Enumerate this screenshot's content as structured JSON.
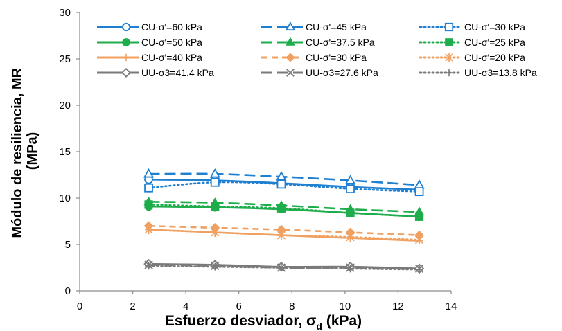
{
  "chart_data": {
    "type": "line",
    "title": "",
    "xlabel": "Esfuerzo desviador, σ",
    "xlabel_sub": "d",
    "xlabel_suffix": " (kPa)",
    "ylabel_line1": "Módulo de resiliencia, MR",
    "ylabel_line2": "(MPa)",
    "xlim": [
      0,
      14
    ],
    "ylim": [
      0,
      30
    ],
    "xticks": [
      "0",
      "2",
      "4",
      "6",
      "8",
      "10",
      "12",
      "14"
    ],
    "yticks": [
      "0",
      "5",
      "10",
      "15",
      "20",
      "25",
      "30"
    ],
    "grid": false,
    "legend_position": "top",
    "x": [
      2.6,
      5.1,
      7.6,
      10.2,
      12.8
    ],
    "series": [
      {
        "name": "CU-σ'=60 kPa",
        "values": [
          12.0,
          11.9,
          11.6,
          11.2,
          10.9
        ],
        "color": "#1f7fd0",
        "dash": "solid",
        "marker": "circle-open"
      },
      {
        "name": "CU-σ'=45 kPa",
        "values": [
          12.6,
          12.6,
          12.3,
          11.9,
          11.4
        ],
        "color": "#1f7fd0",
        "dash": "long-dash",
        "marker": "triangle-open"
      },
      {
        "name": "CU-σ'=30 kPa",
        "values": [
          11.1,
          11.7,
          11.5,
          11.0,
          10.7
        ],
        "color": "#1f7fd0",
        "dash": "dot",
        "marker": "square-open"
      },
      {
        "name": "CU-σ'=50 kPa",
        "values": [
          9.1,
          9.0,
          8.8,
          8.4,
          8.0
        ],
        "color": "#1fad4c",
        "dash": "solid",
        "marker": "circle-filled"
      },
      {
        "name": "CU-σ'=37.5 kPa",
        "values": [
          9.6,
          9.5,
          9.2,
          8.8,
          8.5
        ],
        "color": "#1fad4c",
        "dash": "long-dash",
        "marker": "triangle-filled"
      },
      {
        "name": "CU-σ'=25 kPa",
        "values": [
          9.3,
          9.1,
          8.9,
          8.4,
          8.0
        ],
        "color": "#1fad4c",
        "dash": "dot",
        "marker": "square-filled"
      },
      {
        "name": "CU-σ'=40 kPa",
        "values": [
          6.6,
          6.3,
          6.0,
          5.7,
          5.4
        ],
        "color": "#f0a060",
        "dash": "solid",
        "marker": "plus"
      },
      {
        "name": "CU-σ'=30 kPa",
        "values": [
          7.0,
          6.8,
          6.6,
          6.3,
          6.0
        ],
        "color": "#f0a060",
        "dash": "dash",
        "marker": "diamond-filled"
      },
      {
        "name": "CU-σ'=20 kPa",
        "values": [
          6.6,
          6.3,
          6.0,
          5.8,
          5.5
        ],
        "color": "#f0a060",
        "dash": "dot",
        "marker": "asterisk"
      },
      {
        "name": "UU-σ3=41.4 kPa",
        "values": [
          2.9,
          2.8,
          2.6,
          2.6,
          2.4
        ],
        "color": "#7a7a7a",
        "dash": "solid",
        "marker": "diamond-open"
      },
      {
        "name": "UU-σ3=27.6 kPa",
        "values": [
          2.8,
          2.7,
          2.5,
          2.5,
          2.4
        ],
        "color": "#7a7a7a",
        "dash": "long-dash",
        "marker": "x"
      },
      {
        "name": "UU-σ3=13.8 kPa",
        "values": [
          2.7,
          2.6,
          2.5,
          2.4,
          2.3
        ],
        "color": "#7a7a7a",
        "dash": "dot",
        "marker": "plus"
      }
    ]
  }
}
